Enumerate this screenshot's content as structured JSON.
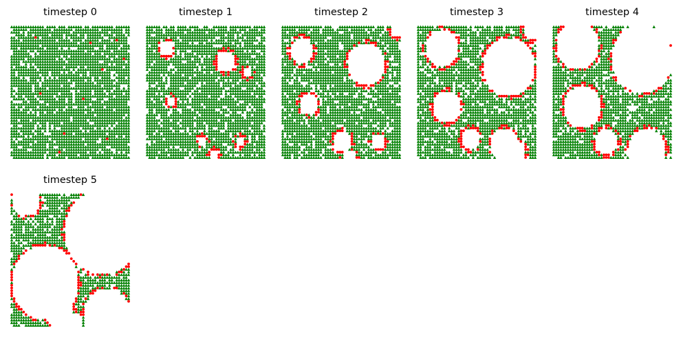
{
  "colors": {
    "tree": "#008000",
    "fire": "#ff0000",
    "background": "#ffffff"
  },
  "chart_data": {
    "type": "scatter",
    "description_free": true,
    "grid_size": 50,
    "marker_tree": "triangle",
    "marker_fire": "circle",
    "axes_visible": false,
    "legend": "none",
    "panels": [
      {
        "title": "timestep 0",
        "burned_regions": [],
        "fires": [
          [
            10,
            4
          ],
          [
            33,
            6
          ],
          [
            44,
            5
          ],
          [
            47,
            12
          ],
          [
            38,
            16
          ],
          [
            12,
            25
          ],
          [
            30,
            27
          ],
          [
            22,
            40
          ],
          [
            40,
            42
          ],
          [
            20,
            47
          ]
        ]
      },
      {
        "title": "timestep 1",
        "burned_regions": [
          [
            8,
            8,
            3
          ],
          [
            33,
            13,
            4
          ],
          [
            42,
            17,
            2
          ],
          [
            10,
            28,
            2
          ],
          [
            23,
            43,
            2
          ],
          [
            39,
            43,
            2
          ],
          [
            28,
            48,
            2
          ]
        ],
        "fires": []
      },
      {
        "title": "timestep 2",
        "burned_regions": [
          [
            8,
            9,
            5
          ],
          [
            35,
            14,
            8
          ],
          [
            11,
            29,
            4
          ],
          [
            25,
            43,
            4
          ],
          [
            40,
            43,
            3
          ],
          [
            28,
            49,
            3
          ],
          [
            48,
            1,
            3
          ]
        ],
        "fires": []
      },
      {
        "title": "timestep 3",
        "burned_regions": [
          [
            10,
            8,
            7
          ],
          [
            38,
            15,
            11
          ],
          [
            12,
            30,
            6
          ],
          [
            22,
            42,
            4
          ],
          [
            36,
            44,
            6
          ],
          [
            40,
            47,
            5
          ],
          [
            48,
            1,
            4
          ]
        ],
        "fires": []
      },
      {
        "title": "timestep 4",
        "burned_regions": [
          [
            10,
            7,
            9
          ],
          [
            37,
            12,
            13
          ],
          [
            12,
            30,
            8
          ],
          [
            22,
            43,
            5
          ],
          [
            39,
            46,
            8
          ],
          [
            48,
            1,
            5
          ]
        ],
        "fires": []
      },
      {
        "title": "timestep 5",
        "burned_regions": [
          [
            6,
            2,
            6
          ],
          [
            38,
            14,
            16
          ],
          [
            14,
            33,
            14
          ],
          [
            40,
            45,
            10
          ],
          [
            20,
            44,
            6
          ],
          [
            26,
            48,
            4
          ],
          [
            49,
            1,
            6
          ]
        ],
        "fires": []
      }
    ]
  }
}
